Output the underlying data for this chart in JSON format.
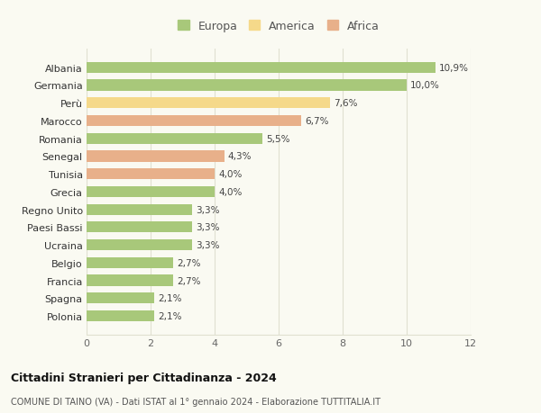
{
  "categories": [
    "Albania",
    "Germania",
    "Perù",
    "Marocco",
    "Romania",
    "Senegal",
    "Tunisia",
    "Grecia",
    "Regno Unito",
    "Paesi Bassi",
    "Ucraina",
    "Belgio",
    "Francia",
    "Spagna",
    "Polonia"
  ],
  "values": [
    10.9,
    10.0,
    7.6,
    6.7,
    5.5,
    4.3,
    4.0,
    4.0,
    3.3,
    3.3,
    3.3,
    2.7,
    2.7,
    2.1,
    2.1
  ],
  "labels": [
    "10,9%",
    "10,0%",
    "7,6%",
    "6,7%",
    "5,5%",
    "4,3%",
    "4,0%",
    "4,0%",
    "3,3%",
    "3,3%",
    "3,3%",
    "2,7%",
    "2,7%",
    "2,1%",
    "2,1%"
  ],
  "continents": [
    "Europa",
    "Europa",
    "America",
    "Africa",
    "Europa",
    "Africa",
    "Africa",
    "Europa",
    "Europa",
    "Europa",
    "Europa",
    "Europa",
    "Europa",
    "Europa",
    "Europa"
  ],
  "colors": {
    "Europa": "#a8c87a",
    "America": "#f5d98a",
    "Africa": "#e8b08a"
  },
  "title1": "Cittadini Stranieri per Cittadinanza - 2024",
  "title2": "COMUNE DI TAINO (VA) - Dati ISTAT al 1° gennaio 2024 - Elaborazione TUTTITALIA.IT",
  "xlim": [
    0,
    12
  ],
  "xticks": [
    0,
    2,
    4,
    6,
    8,
    10,
    12
  ],
  "bg_color": "#fafaf2",
  "grid_color": "#e0e0d0"
}
